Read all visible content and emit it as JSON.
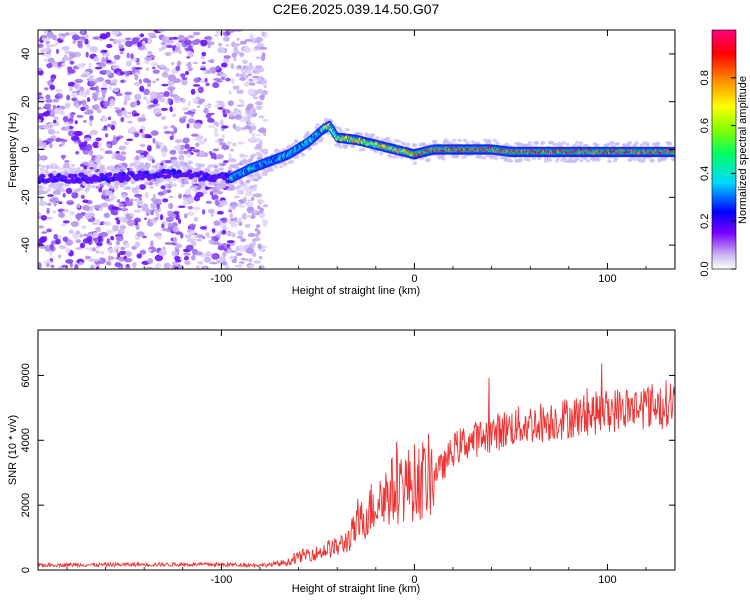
{
  "chart_data": [
    {
      "type": "heatmap",
      "title": "C2E6.2025.039.14.50.G07",
      "xlabel": "Height of straight line (km)",
      "ylabel": "Frequency (Hz)",
      "xlim": [
        -195,
        135
      ],
      "ylim": [
        -50,
        50
      ],
      "xticks": [
        -100,
        0,
        100
      ],
      "yticks": [
        -40,
        -20,
        0,
        20,
        40
      ],
      "colorbar": {
        "label": "Normalized spectral amplitude",
        "range": [
          0,
          1
        ],
        "ticks": [
          "0.0",
          "0.2",
          "0.4",
          "0.6",
          "0.8"
        ]
      },
      "trace": {
        "x": [
          -195,
          -180,
          -160,
          -140,
          -125,
          -110,
          -95,
          -85,
          -75,
          -65,
          -55,
          -48,
          -44,
          -40,
          -30,
          -20,
          -10,
          -5,
          0,
          10,
          20,
          30,
          40,
          50,
          60,
          70,
          80,
          90,
          100,
          110,
          120,
          135
        ],
        "y": [
          -12,
          -12,
          -12,
          -11,
          -10,
          -11,
          -12,
          -8,
          -5,
          -2,
          3,
          8,
          10,
          5,
          4,
          2,
          0,
          -1,
          -2,
          0,
          0,
          0,
          0,
          -1,
          -1,
          -1,
          -1,
          -1,
          -1,
          -1,
          -1,
          -1
        ]
      }
    },
    {
      "type": "line",
      "xlabel": "Height of straight line (km)",
      "ylabel": "SNR (10 * v/v)",
      "xlim": [
        -195,
        135
      ],
      "ylim": [
        0,
        7400
      ],
      "xticks": [
        -100,
        0,
        100
      ],
      "yticks": [
        0,
        2000,
        4000,
        6000
      ],
      "line_color": "#ee3333",
      "series": [
        {
          "x": [
            -195,
            -180,
            -160,
            -140,
            -120,
            -100,
            -90,
            -80,
            -75,
            -70,
            -65,
            -60,
            -55,
            -50,
            -45,
            -40,
            -35,
            -30,
            -25,
            -20,
            -15,
            -10,
            -5,
            0,
            5,
            10,
            15,
            20,
            25,
            30,
            35,
            40,
            45,
            50,
            55,
            60,
            65,
            70,
            75,
            80,
            85,
            90,
            95,
            100,
            105,
            110,
            115,
            120,
            125,
            130,
            135
          ],
          "y": [
            150,
            160,
            160,
            170,
            170,
            170,
            160,
            150,
            160,
            200,
            250,
            400,
            500,
            520,
            650,
            700,
            900,
            1300,
            1700,
            2100,
            2300,
            2500,
            2600,
            2700,
            2800,
            3000,
            3200,
            3700,
            3900,
            4000,
            4100,
            4200,
            4300,
            4400,
            4450,
            4500,
            4550,
            4600,
            4650,
            4700,
            4750,
            4800,
            4850,
            4900,
            4950,
            5000,
            5000,
            5050,
            5100,
            5150,
            5200
          ]
        }
      ]
    }
  ]
}
